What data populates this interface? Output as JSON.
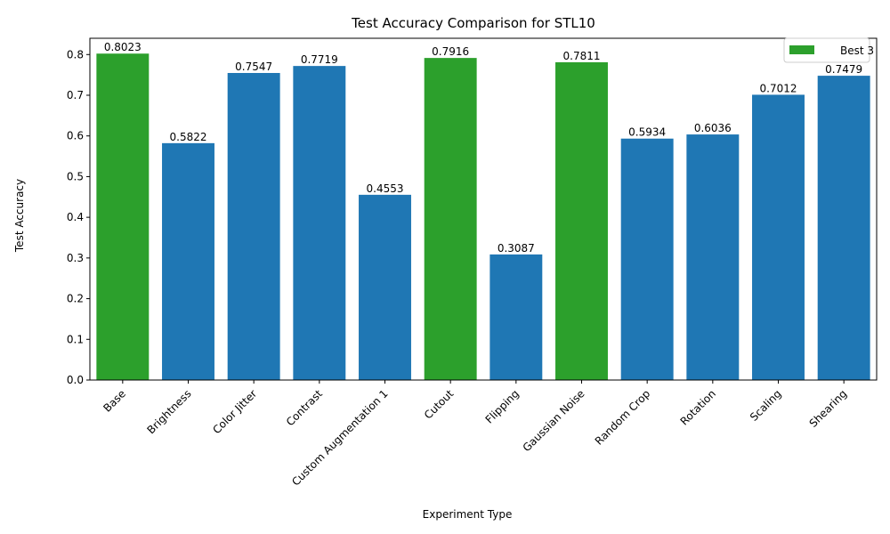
{
  "chart_data": {
    "type": "bar",
    "title": "Test Accuracy Comparison for STL10",
    "xlabel": "Experiment Type",
    "ylabel": "Test Accuracy",
    "ylim": [
      0,
      0.84
    ],
    "yticks": [
      "0.0",
      "0.1",
      "0.2",
      "0.3",
      "0.4",
      "0.5",
      "0.6",
      "0.7",
      "0.8"
    ],
    "categories": [
      "Base",
      "Brightness",
      "Color Jitter",
      "Contrast",
      "Custom Augmentation 1",
      "Cutout",
      "Flipping",
      "Gaussian Noise",
      "Random Crop",
      "Rotation",
      "Scaling",
      "Shearing"
    ],
    "values": [
      0.8023,
      0.5822,
      0.7547,
      0.7719,
      0.4553,
      0.7916,
      0.3087,
      0.7811,
      0.5934,
      0.6036,
      0.7012,
      0.7479
    ],
    "value_labels": [
      "0.8023",
      "0.5822",
      "0.7547",
      "0.7719",
      "0.4553",
      "0.7916",
      "0.3087",
      "0.7811",
      "0.5934",
      "0.6036",
      "0.7012",
      "0.7479"
    ],
    "highlighted": [
      true,
      false,
      false,
      false,
      false,
      true,
      false,
      true,
      false,
      false,
      false,
      false
    ],
    "legend": {
      "label": "Best 3",
      "placement": "top-right"
    },
    "grid": false
  },
  "colors": {
    "default": "#1f77b4",
    "best": "#2ca02c"
  }
}
